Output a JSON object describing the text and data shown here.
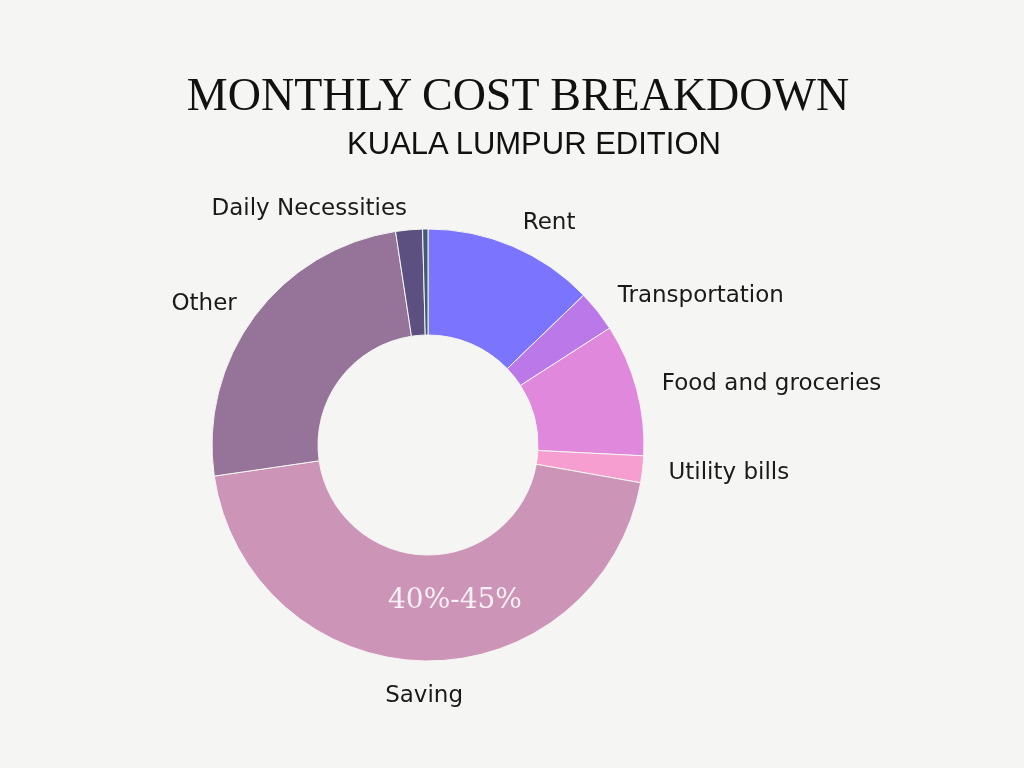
{
  "chart_data": {
    "type": "donut",
    "title": "MONTHLY COST BREAKDOWN",
    "subtitle": "KUALA LUMPUR EDITION",
    "categories": [
      "Rent",
      "Transportation",
      "Food and groceries",
      "Utility bills",
      "Saving",
      "Other",
      "Daily Necessities",
      null
    ],
    "values": [
      12.8,
      3.1,
      9.9,
      2.0,
      44.9,
      24.9,
      2.0,
      0.4
    ],
    "colors": [
      "#7b74ff",
      "#bb78e8",
      "#e088dc",
      "#f59ecf",
      "#cc95b8",
      "#967399",
      "#5c5080",
      "#3f5a78"
    ],
    "annotations": [
      "40%-45%"
    ]
  }
}
